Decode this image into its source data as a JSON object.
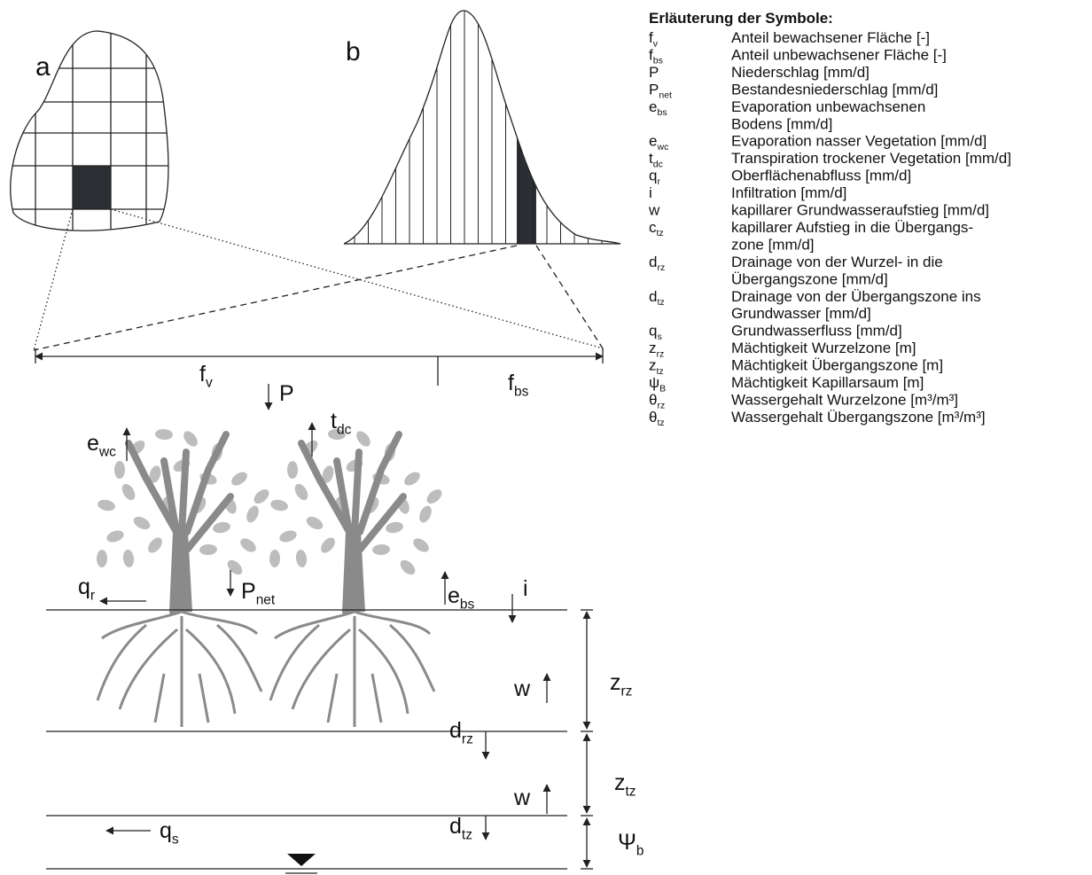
{
  "panels": {
    "a": "a",
    "b": "b"
  },
  "legend": {
    "title": "Erläuterung der Symbole:",
    "entries": [
      {
        "symbol": {
          "base": "f",
          "sub": "v"
        },
        "description": [
          "Anteil bewachsener Fläche [-]"
        ]
      },
      {
        "symbol": {
          "base": "f",
          "sub": "bs"
        },
        "description": [
          "Anteil unbewachsener Fläche [-]"
        ]
      },
      {
        "symbol": {
          "base": "P"
        },
        "description": [
          "Niederschlag [mm/d]"
        ]
      },
      {
        "symbol": {
          "base": "P",
          "sub": "net"
        },
        "description": [
          "Bestandesniederschlag [mm/d]"
        ]
      },
      {
        "symbol": {
          "base": "e",
          "sub": "bs"
        },
        "description": [
          "Evaporation unbewachsenen",
          "Bodens [mm/d]"
        ]
      },
      {
        "symbol": {
          "base": "e",
          "sub": "wc"
        },
        "description": [
          "Evaporation nasser Vegetation [mm/d]"
        ]
      },
      {
        "symbol": {
          "base": "t",
          "sub": "dc"
        },
        "description": [
          "Transpiration trockener Vegetation [mm/d]"
        ]
      },
      {
        "symbol": {
          "base": "q",
          "sub": "r"
        },
        "description": [
          "Oberflächenabfluss [mm/d]"
        ]
      },
      {
        "symbol": {
          "base": "i"
        },
        "description": [
          "Infiltration [mm/d]"
        ]
      },
      {
        "symbol": {
          "base": "w"
        },
        "description": [
          "kapillarer Grundwasseraufstieg [mm/d]"
        ]
      },
      {
        "symbol": {
          "base": "c",
          "sub": "tz"
        },
        "description": [
          "kapillarer Aufstieg in die Übergangs-",
          "zone [mm/d]"
        ]
      },
      {
        "symbol": {
          "base": "d",
          "sub": "rz"
        },
        "description": [
          "Drainage von der Wurzel- in die",
          "Übergangszone [mm/d]"
        ]
      },
      {
        "symbol": {
          "base": "d",
          "sub": "tz"
        },
        "description": [
          "Drainage von der Übergangszone ins",
          "Grundwasser [mm/d]"
        ]
      },
      {
        "symbol": {
          "base": "q",
          "sub": "s"
        },
        "description": [
          "Grundwasserfluss [mm/d]"
        ]
      },
      {
        "symbol": {
          "base": "z",
          "sub": "rz"
        },
        "description": [
          "Mächtigkeit Wurzelzone [m]"
        ]
      },
      {
        "symbol": {
          "base": "z",
          "sub": "tz"
        },
        "description": [
          "Mächtigkeit Übergangszone [m]"
        ]
      },
      {
        "symbol": {
          "base": "ψ",
          "sub": "B"
        },
        "description": [
          "Mächtigkeit Kapillarsaum [m]"
        ]
      },
      {
        "symbol": {
          "base": "θ",
          "sub": "rz"
        },
        "description": [
          "Wassergehalt Wurzelzone [m³/m³]"
        ]
      },
      {
        "symbol": {
          "base": "θ",
          "sub": "tz"
        },
        "description": [
          "Wassergehalt Übergangszone [m³/m³]"
        ]
      }
    ]
  },
  "labels": [
    {
      "base": "f",
      "sub": "v"
    },
    {
      "base": "f",
      "sub": "bs"
    },
    {
      "base": "P"
    },
    {
      "base": "e",
      "sub": "wc"
    },
    {
      "base": "t",
      "sub": "dc"
    },
    {
      "base": "q",
      "sub": "r"
    },
    {
      "base": "P",
      "sub": "net"
    },
    {
      "base": "e",
      "sub": "bs"
    },
    {
      "base": "i"
    },
    {
      "base": "z",
      "sub": "rz"
    },
    {
      "base": "w"
    },
    {
      "base": "d",
      "sub": "rz"
    },
    {
      "base": "z",
      "sub": "tz"
    },
    {
      "base": "w"
    },
    {
      "base": "q",
      "sub": "s"
    },
    {
      "base": "d",
      "sub": "tz"
    },
    {
      "base": "Ψ",
      "sub": "b"
    }
  ]
}
